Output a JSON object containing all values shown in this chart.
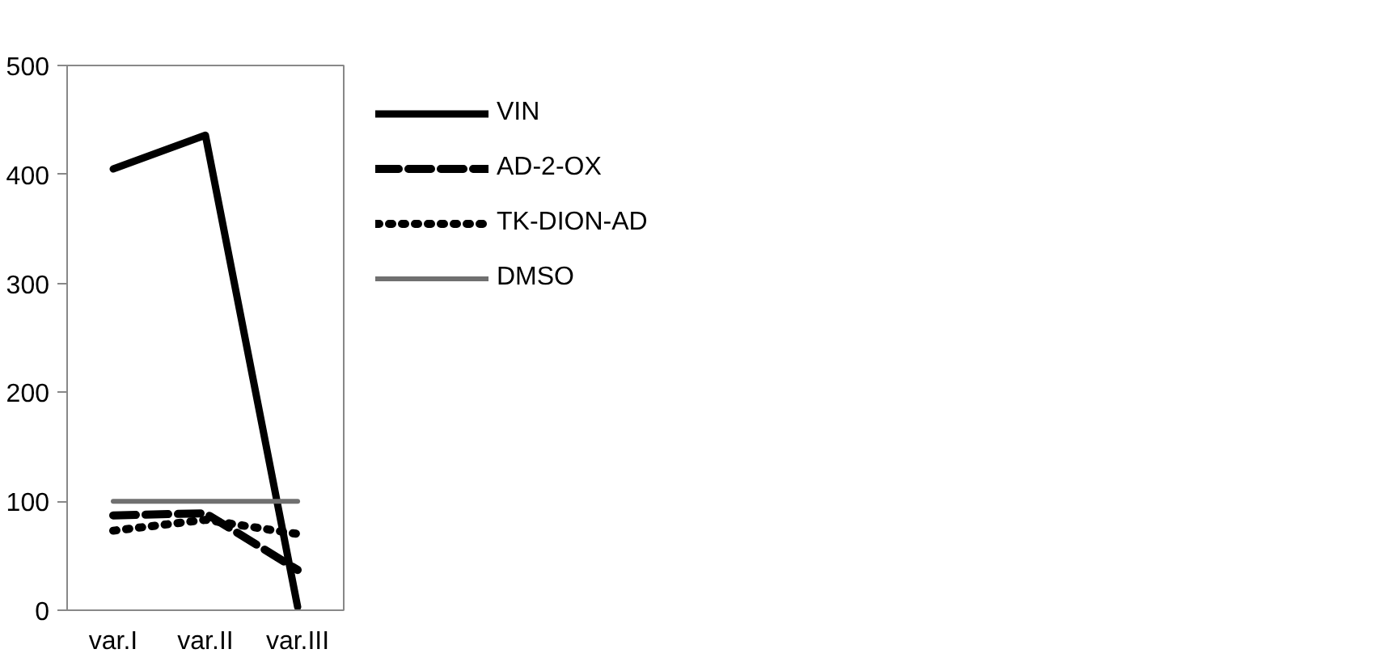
{
  "chart_data": {
    "type": "line",
    "categories": [
      "var.I",
      "var.II",
      "var.III"
    ],
    "series": [
      {
        "name": "VIN",
        "color": "#000000",
        "values": [
          405,
          436,
          3
        ],
        "line_style": "solid"
      },
      {
        "name": "AD-2-OX",
        "color": "#000000",
        "values": [
          87,
          89,
          37
        ],
        "line_style": "dashed"
      },
      {
        "name": "TK-DION-AD",
        "color": "#000000",
        "values": [
          73,
          83,
          70
        ],
        "line_style": "dotted"
      },
      {
        "name": "DMSO",
        "color": "#707070",
        "values": [
          100,
          100,
          100
        ],
        "line_style": "solid"
      }
    ],
    "ylim": [
      0,
      500
    ],
    "yticks": [
      0,
      100,
      200,
      300,
      400,
      500
    ],
    "grid": false,
    "legend": "right",
    "marker": "none"
  }
}
